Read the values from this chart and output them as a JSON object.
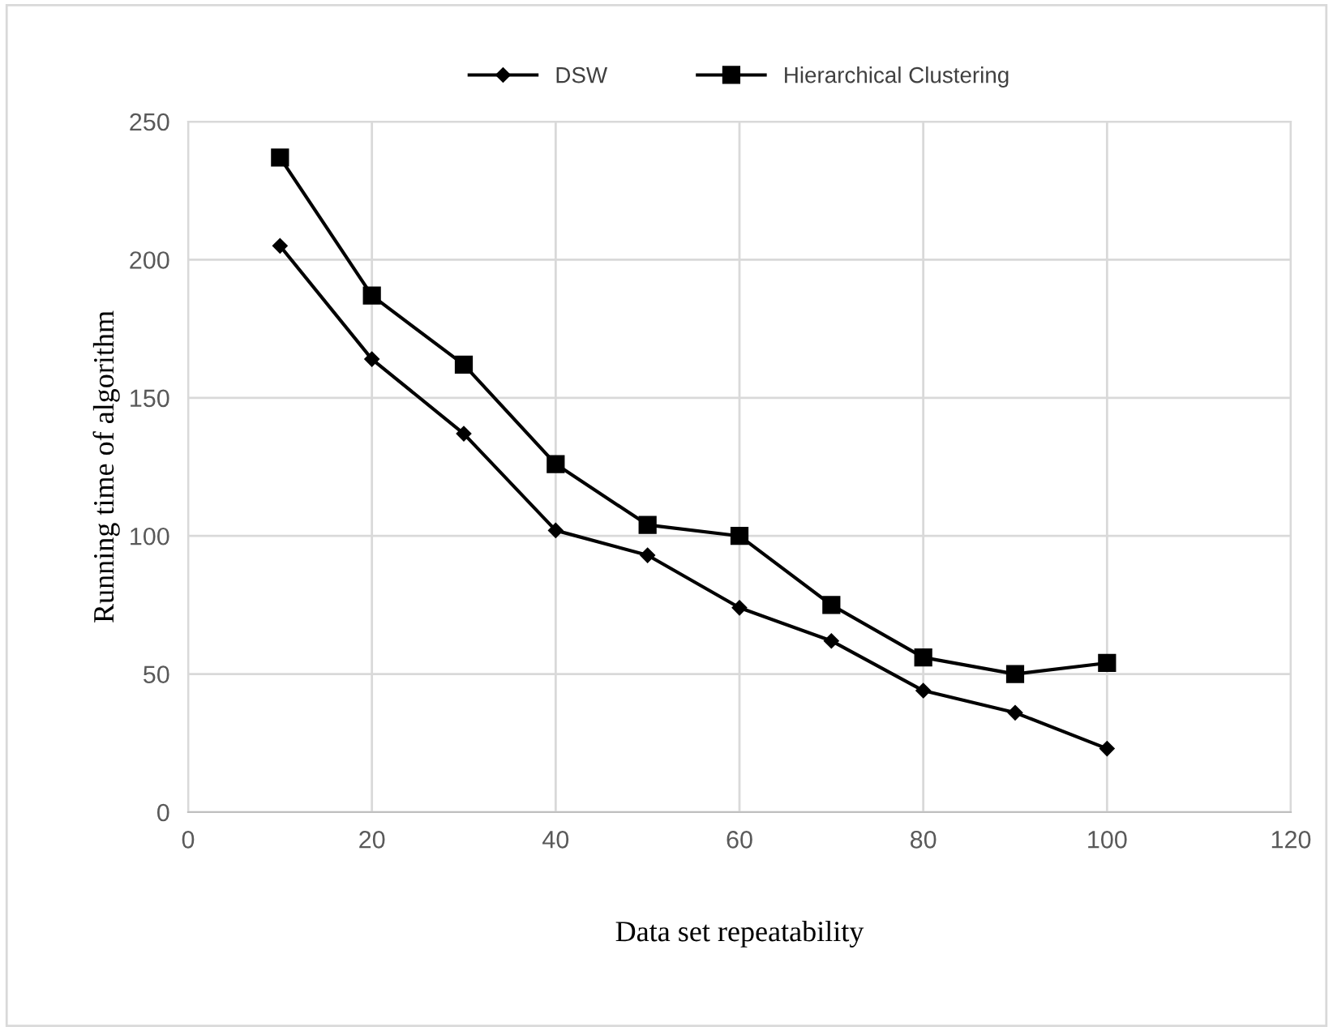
{
  "chart_data": {
    "type": "line",
    "xlabel": "Data set repeatability",
    "ylabel": "Running time of algorithm",
    "x": [
      10,
      20,
      30,
      40,
      50,
      60,
      70,
      80,
      90,
      100
    ],
    "series": [
      {
        "name": "DSW",
        "color": "#000000",
        "marker": "diamond",
        "values": [
          205,
          164,
          137,
          102,
          93,
          74,
          62,
          44,
          36,
          23
        ]
      },
      {
        "name": "Hierarchical Clustering",
        "color": "#000000",
        "marker": "square",
        "values": [
          237,
          187,
          162,
          126,
          104,
          100,
          75,
          56,
          50,
          54
        ]
      }
    ],
    "xlim": [
      0,
      120
    ],
    "xticks": [
      0,
      20,
      40,
      60,
      80,
      100,
      120
    ],
    "ylim": [
      0,
      250
    ],
    "yticks": [
      0,
      50,
      100,
      150,
      200,
      250
    ],
    "grid": true,
    "legend": "top",
    "line_style": "solid"
  }
}
